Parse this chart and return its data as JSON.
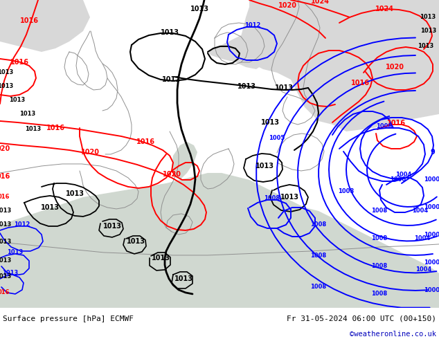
{
  "title_left": "Surface pressure [hPa] ECMWF",
  "title_right": "Fr 31-05-2024 06:00 UTC (00+150)",
  "watermark": "©weatheronline.co.uk",
  "fig_width": 6.34,
  "fig_height": 4.9,
  "dpi": 100,
  "map_bg": "#c8e8a8",
  "sea_color": "#d8d8d8",
  "footer_bg": "#ffffff",
  "coast_color": "#888888",
  "land_color": "#b0d890"
}
